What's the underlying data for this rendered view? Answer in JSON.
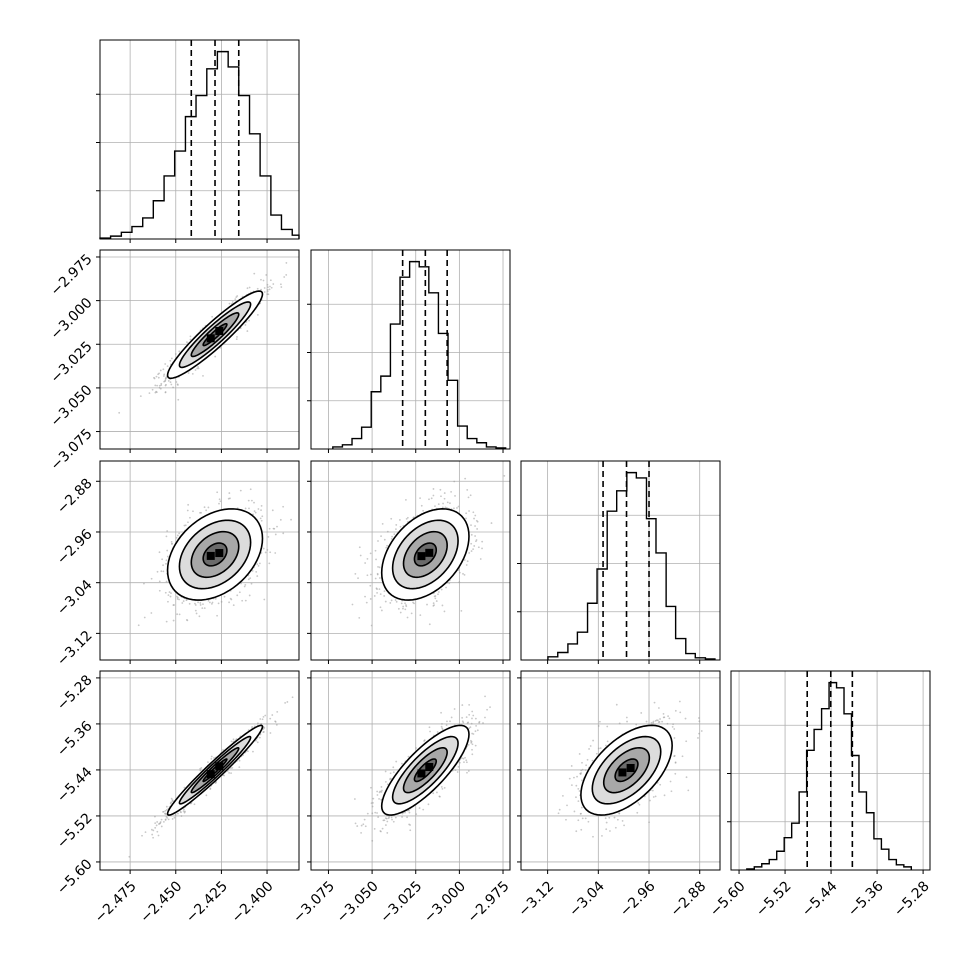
{
  "chart_data": {
    "type": "corner",
    "grid": true,
    "parameters": [
      {
        "index": 0,
        "range": [
          -2.4915,
          -2.3825
        ],
        "ticks": [
          "−2.475",
          "−2.450",
          "−2.425",
          "−2.400"
        ],
        "tick_values": [
          -2.475,
          -2.45,
          -2.425,
          -2.4
        ],
        "quantiles": [
          -2.4415,
          -2.4285,
          -2.4155
        ],
        "hist_x": [
          -2.4915,
          -2.4857,
          -2.4798,
          -2.474,
          -2.4681,
          -2.4623,
          -2.4564,
          -2.4506,
          -2.4447,
          -2.4389,
          -2.433,
          -2.4272,
          -2.4213,
          -2.4155,
          -2.4096,
          -2.4038,
          -2.3979,
          -2.3921,
          -2.3862,
          -2.3825
        ],
        "hist_counts": [
          1,
          3,
          7,
          13,
          22,
          40,
          66,
          92,
          128,
          150,
          178,
          196,
          180,
          150,
          110,
          66,
          25,
          10,
          4
        ]
      },
      {
        "index": 1,
        "range": [
          -3.085,
          -2.971
        ],
        "ticks": [
          "−3.075",
          "−3.050",
          "−3.025",
          "−3.000",
          "−2.975"
        ],
        "tick_values": [
          -3.075,
          -3.05,
          -3.025,
          -3.0,
          -2.975
        ],
        "quantiles": [
          -3.0325,
          -3.0195,
          -3.007
        ],
        "hist_x": [
          -3.0725,
          -3.067,
          -3.0615,
          -3.056,
          -3.0505,
          -3.045,
          -3.0395,
          -3.034,
          -3.0285,
          -3.023,
          -3.0175,
          -3.012,
          -3.0065,
          -3.001,
          -2.9955,
          -2.99,
          -2.9845,
          -2.979,
          -2.9735
        ],
        "hist_counts": [
          2,
          4,
          10,
          21,
          55,
          70,
          120,
          165,
          180,
          175,
          150,
          111,
          66,
          22,
          10,
          6,
          2,
          1
        ]
      },
      {
        "index": 2,
        "range": [
          -3.162,
          -2.848
        ],
        "ticks": [
          "−3.12",
          "−3.04",
          "−2.96",
          "−2.88"
        ],
        "tick_values": [
          -3.12,
          -3.04,
          -2.96,
          -2.88
        ],
        "quantiles": [
          -3.0325,
          -2.9955,
          -2.96
        ],
        "hist_x": [
          -3.1195,
          -3.104,
          -3.088,
          -3.073,
          -3.057,
          -3.042,
          -3.026,
          -3.011,
          -2.995,
          -2.98,
          -2.964,
          -2.949,
          -2.933,
          -2.918,
          -2.902,
          -2.887,
          -2.871,
          -2.856
        ],
        "hist_counts": [
          3,
          7,
          15,
          26,
          53,
          85,
          139,
          158,
          175,
          170,
          132,
          100,
          50,
          20,
          6,
          2,
          1
        ]
      },
      {
        "index": 3,
        "range": [
          -5.614,
          -5.268
        ],
        "ticks": [
          "−5.60",
          "−5.52",
          "−5.44",
          "−5.36",
          "−5.28"
        ],
        "tick_values": [
          -5.6,
          -5.52,
          -5.44,
          -5.36,
          -5.28
        ],
        "quantiles": [
          -5.4815,
          -5.4405,
          -5.403
        ],
        "hist_x": [
          -5.5865,
          -5.5735,
          -5.5605,
          -5.5475,
          -5.5345,
          -5.5215,
          -5.5085,
          -5.4955,
          -5.4825,
          -5.4695,
          -5.4565,
          -5.4435,
          -5.4305,
          -5.4175,
          -5.4045,
          -5.3915,
          -5.3785,
          -5.3655,
          -5.3525,
          -5.3395,
          -5.3265,
          -5.3135,
          -5.3005
        ],
        "hist_counts": [
          1,
          3,
          6,
          10,
          18,
          31,
          45,
          75,
          115,
          135,
          155,
          180,
          175,
          150,
          110,
          75,
          55,
          30,
          20,
          10,
          5,
          3
        ]
      }
    ],
    "pairs": [
      {
        "x_param": 0,
        "y_param": 1,
        "center": [
          -2.4285,
          -3.0195
        ],
        "sd": [
          0.013,
          0.0125
        ],
        "correlation": 0.93
      },
      {
        "x_param": 0,
        "y_param": 2,
        "center": [
          -2.4285,
          -2.9955
        ],
        "sd": [
          0.013,
          0.036
        ],
        "correlation": 0.35
      },
      {
        "x_param": 1,
        "y_param": 2,
        "center": [
          -3.0195,
          -2.9955
        ],
        "sd": [
          0.0125,
          0.036
        ],
        "correlation": 0.4
      },
      {
        "x_param": 0,
        "y_param": 3,
        "center": [
          -2.4285,
          -5.4405
        ],
        "sd": [
          0.013,
          0.039
        ],
        "correlation": 0.97
      },
      {
        "x_param": 1,
        "y_param": 3,
        "center": [
          -3.0195,
          -5.4405
        ],
        "sd": [
          0.0125,
          0.039
        ],
        "correlation": 0.8
      },
      {
        "x_param": 2,
        "y_param": 3,
        "center": [
          -2.9955,
          -5.4405
        ],
        "sd": [
          0.036,
          0.039
        ],
        "correlation": 0.55
      }
    ],
    "contour_levels_sigma": [
      0.5,
      1.0,
      1.5,
      2.0
    ],
    "colors": {
      "contour": "#000000",
      "scatter": "#9a9a9a",
      "grid": "#b0b0b0",
      "quantile_line": "#000000"
    }
  }
}
